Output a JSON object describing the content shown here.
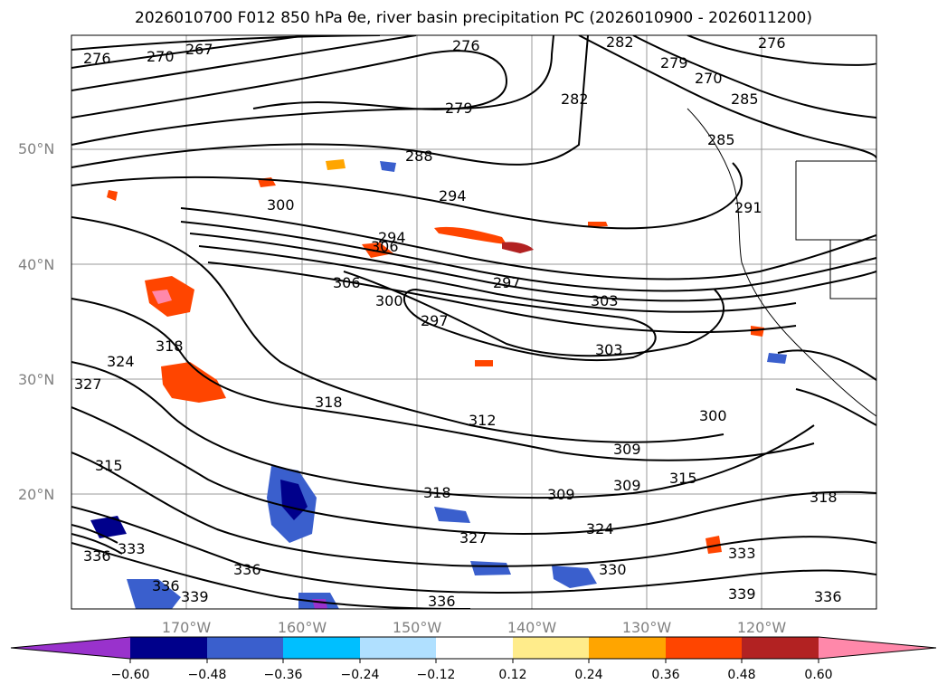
{
  "title": "2026010700 F012 850 hPa θe, river basin precipitation PC (2026010900 - 2026011200)",
  "lat_labels": [
    "50°N",
    "40°N",
    "30°N",
    "20°N"
  ],
  "lon_labels": [
    "170°W",
    "160°W",
    "150°W",
    "140°W",
    "130°W",
    "120°W"
  ],
  "colorbar": {
    "ticks": [
      "−0.60",
      "−0.48",
      "−0.36",
      "−0.24",
      "−0.12",
      "0.12",
      "0.24",
      "0.36",
      "0.48",
      "0.60"
    ],
    "colors": [
      "#9932cc",
      "#00008b",
      "#3a5fcd",
      "#00bfff",
      "#b0e0ff",
      "#ffffff",
      "#ffec8b",
      "#ffa500",
      "#ff4500",
      "#b22222",
      "#ff88aa"
    ]
  },
  "contour_labels": [
    "267",
    "270",
    "276",
    "276",
    "276",
    "279",
    "282",
    "282",
    "279",
    "270",
    "285",
    "285",
    "288",
    "294",
    "294",
    "300",
    "306",
    "291",
    "297",
    "306",
    "300",
    "303",
    "303",
    "297",
    "318",
    "324",
    "327",
    "318",
    "312",
    "309",
    "309",
    "300",
    "309",
    "315",
    "318",
    "318",
    "324",
    "327",
    "333",
    "330",
    "336",
    "336",
    "339",
    "339",
    "336",
    "336",
    "315",
    "336",
    "333"
  ]
}
